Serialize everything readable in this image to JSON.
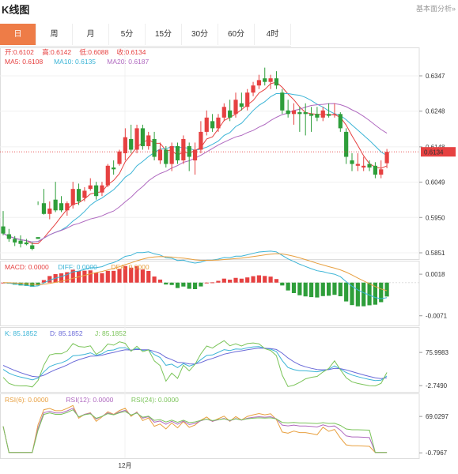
{
  "header": {
    "title": "K线图",
    "analysis_link": "基本面分析»"
  },
  "tabs": [
    "日",
    "周",
    "月",
    "5分",
    "15分",
    "30分",
    "60分",
    "4时"
  ],
  "active_tab": 0,
  "colors": {
    "up": "#e64141",
    "down": "#2e9e3a",
    "ma5": "#e64141",
    "ma10": "#3bb4d6",
    "ma20": "#b06ac0",
    "accent": "#ee7c47"
  },
  "chart_data": [
    {
      "type": "candlestick",
      "ohlc_legend": {
        "open_label": "开",
        "open": "0.6102",
        "high_label": "高",
        "high": "0.6142",
        "low_label": "低",
        "low": "0.6088",
        "close_label": "收",
        "close": "0.6134"
      },
      "ma_legend": [
        {
          "name": "MA5",
          "value": "0.6108"
        },
        {
          "name": "MA10",
          "value": "0.6135"
        },
        {
          "name": "MA20",
          "value": "0.6187"
        }
      ],
      "y_ticks": [
        "0.6347",
        "0.6248",
        "0.6148",
        "0.6049",
        "0.5950",
        "0.5851"
      ],
      "ylim": [
        0.5851,
        0.6347
      ],
      "last_price": "0.6134",
      "x_label": "12月",
      "candles": [
        [
          0.5925,
          0.5968,
          0.5905,
          0.59
        ],
        [
          0.5903,
          0.5918,
          0.589,
          0.5882
        ],
        [
          0.589,
          0.5898,
          0.588,
          0.587
        ],
        [
          0.5885,
          0.59,
          0.5876,
          0.5866
        ],
        [
          0.588,
          0.589,
          0.5875,
          0.5872
        ],
        [
          0.5872,
          0.588,
          0.5862,
          0.5858
        ],
        [
          0.5895,
          0.5995,
          0.589,
          0.5985
        ],
        [
          0.599,
          0.603,
          0.596,
          0.5958
        ],
        [
          0.596,
          0.5995,
          0.5975,
          0.5945
        ],
        [
          0.6,
          0.605,
          0.597,
          0.5965
        ],
        [
          0.599,
          0.601,
          0.597,
          0.5965
        ],
        [
          0.597,
          0.5995,
          0.599,
          0.5955
        ],
        [
          0.5985,
          0.605,
          0.603,
          0.5975
        ],
        [
          0.603,
          0.6045,
          0.5995,
          0.5985
        ],
        [
          0.6005,
          0.6035,
          0.6025,
          0.5995
        ],
        [
          0.603,
          0.606,
          0.604,
          0.6025
        ],
        [
          0.604,
          0.605,
          0.601,
          0.6
        ],
        [
          0.602,
          0.605,
          0.604,
          0.601
        ],
        [
          0.604,
          0.61,
          0.6095,
          0.6035
        ],
        [
          0.609,
          0.611,
          0.6085,
          0.607
        ],
        [
          0.61,
          0.614,
          0.6135,
          0.6095
        ],
        [
          0.613,
          0.62,
          0.6175,
          0.611
        ],
        [
          0.617,
          0.621,
          0.614,
          0.613
        ],
        [
          0.614,
          0.621,
          0.62,
          0.613
        ],
        [
          0.62,
          0.621,
          0.615,
          0.614
        ],
        [
          0.615,
          0.619,
          0.618,
          0.614
        ],
        [
          0.617,
          0.619,
          0.612,
          0.611
        ],
        [
          0.611,
          0.616,
          0.614,
          0.61
        ],
        [
          0.614,
          0.615,
          0.61,
          0.609
        ],
        [
          0.61,
          0.616,
          0.615,
          0.608
        ],
        [
          0.615,
          0.616,
          0.611,
          0.61
        ],
        [
          0.611,
          0.618,
          0.617,
          0.61
        ],
        [
          0.615,
          0.616,
          0.612,
          0.608
        ],
        [
          0.611,
          0.616,
          0.614,
          0.607
        ],
        [
          0.614,
          0.622,
          0.619,
          0.613
        ],
        [
          0.619,
          0.625,
          0.623,
          0.618
        ],
        [
          0.622,
          0.624,
          0.62,
          0.619
        ],
        [
          0.62,
          0.624,
          0.623,
          0.619
        ],
        [
          0.623,
          0.627,
          0.626,
          0.622
        ],
        [
          0.625,
          0.628,
          0.623,
          0.622
        ],
        [
          0.624,
          0.63,
          0.628,
          0.623
        ],
        [
          0.627,
          0.63,
          0.626,
          0.625
        ],
        [
          0.626,
          0.631,
          0.63,
          0.625
        ],
        [
          0.63,
          0.633,
          0.632,
          0.629
        ],
        [
          0.632,
          0.635,
          0.6335,
          0.631
        ],
        [
          0.634,
          0.637,
          0.633,
          0.632
        ],
        [
          0.633,
          0.635,
          0.634,
          0.631
        ],
        [
          0.634,
          0.636,
          0.632,
          0.631
        ],
        [
          0.63,
          0.631,
          0.625,
          0.624
        ],
        [
          0.625,
          0.628,
          0.624,
          0.623
        ],
        [
          0.624,
          0.627,
          0.625,
          0.621
        ],
        [
          0.6245,
          0.626,
          0.624,
          0.619
        ],
        [
          0.6245,
          0.627,
          0.624,
          0.618
        ],
        [
          0.624,
          0.626,
          0.6235,
          0.619
        ],
        [
          0.624,
          0.626,
          0.623,
          0.622
        ],
        [
          0.623,
          0.626,
          0.625,
          0.622
        ],
        [
          0.624,
          0.627,
          0.6235,
          0.623
        ],
        [
          0.624,
          0.627,
          0.624,
          0.623
        ],
        [
          0.624,
          0.6245,
          0.62,
          0.619
        ],
        [
          0.619,
          0.62,
          0.612,
          0.61
        ],
        [
          0.611,
          0.613,
          0.61,
          0.608
        ],
        [
          0.6095,
          0.613,
          0.61,
          0.608
        ],
        [
          0.609,
          0.612,
          0.6095,
          0.608
        ],
        [
          0.61,
          0.611,
          0.609,
          0.608
        ],
        [
          0.6095,
          0.6105,
          0.607,
          0.606
        ],
        [
          0.607,
          0.611,
          0.6085,
          0.606
        ],
        [
          0.6102,
          0.6142,
          0.6134,
          0.6088
        ]
      ]
    },
    {
      "type": "line",
      "name": "MACD",
      "legend": [
        {
          "name": "MACD",
          "value": "0.0000"
        },
        {
          "name": "DIFF",
          "value": "0.0000"
        },
        {
          "name": "DEA",
          "value": "0.0000"
        }
      ],
      "y_ticks": [
        "0.0018",
        "-0.0071"
      ],
      "ylim": [
        -0.0085,
        0.003
      ]
    },
    {
      "type": "line",
      "name": "KDJ",
      "legend": [
        {
          "name": "K",
          "value": "85.1852"
        },
        {
          "name": "D",
          "value": "85.1852"
        },
        {
          "name": "J",
          "value": "85.1852"
        }
      ],
      "y_ticks": [
        "75.9983",
        "-2.7490"
      ],
      "ylim": [
        -10,
        110
      ]
    },
    {
      "type": "line",
      "name": "RSI",
      "legend": [
        {
          "name": "RSI(6)",
          "value": "0.0000"
        },
        {
          "name": "RSI(12)",
          "value": "0.0000"
        },
        {
          "name": "RSI(24)",
          "value": "0.0000"
        }
      ],
      "y_ticks": [
        "69.0297",
        "-0.7967"
      ],
      "ylim": [
        -5,
        92
      ]
    }
  ],
  "indicator_colors": {
    "macd": "#e64141",
    "diff": "#3bb4d6",
    "dea": "#e8a040",
    "k": "#3bb4d6",
    "d": "#6a6ad8",
    "j": "#7bc45a",
    "rsi6": "#e8a040",
    "rsi12": "#b06ac0",
    "rsi24": "#7bc45a"
  }
}
